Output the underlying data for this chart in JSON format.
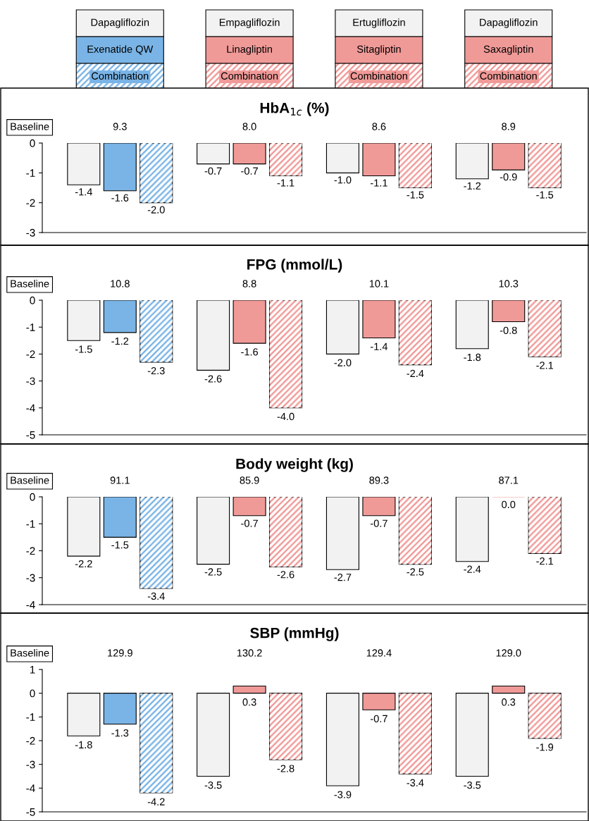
{
  "chart_data": [
    {
      "type": "other",
      "annotations": [
        "Dapagliflozin",
        "Exenatide QW",
        "Combination",
        "Empagliflozin",
        "Linagliptin",
        "Combination",
        "Ertugliflozin",
        "Sitagliptin",
        "Combination",
        "Dapagliflozin",
        "Saxagliptin",
        "Combination"
      ]
    },
    {
      "type": "bar",
      "title": "HbA$_{1c}$ (%)",
      "categories": [
        null,
        null,
        null,
        null
      ],
      "ylim": [
        -3,
        0
      ],
      "yticks": [
        0,
        -1,
        -2,
        -3
      ],
      "tick_labels": "y",
      "annotations": [
        "Baseline",
        "9.3",
        "8.0",
        "8.6",
        "8.9"
      ],
      "series": [
        {
          "colors": [
            "#f2f2f2",
            "#f2f2f2",
            "#f2f2f2",
            "#f2f2f2"
          ],
          "values": [
            -1.4,
            -0.7,
            -1.0,
            -1.2
          ],
          "value_labels": [
            "-1.4",
            "-0.7",
            "-1.0",
            "-1.2"
          ]
        },
        {
          "colors": [
            "#7ab4e6",
            "#f09a98",
            "#f09a98",
            "#f09a98"
          ],
          "values": [
            -1.6,
            -0.7,
            -1.1,
            -0.9
          ],
          "value_labels": [
            "-1.6",
            "-0.7",
            "-1.1",
            "-0.9"
          ]
        },
        {
          "colors": [
            "#7ab4e6",
            "#f09a98",
            "#f09a98",
            "#f09a98"
          ],
          "values": [
            -2.0,
            -1.1,
            -1.5,
            -1.5
          ],
          "value_labels": [
            "-2.0",
            "-1.1",
            "-1.5",
            "-1.5"
          ]
        }
      ]
    },
    {
      "type": "bar",
      "title": "FPG (mmol/L)",
      "categories": [
        null,
        null,
        null,
        null
      ],
      "ylim": [
        -5,
        0
      ],
      "yticks": [
        0,
        -1,
        -2,
        -3,
        -4,
        -5
      ],
      "tick_labels": "y",
      "annotations": [
        "Baseline",
        "10.8",
        "8.8",
        "10.1",
        "10.3"
      ],
      "series": [
        {
          "colors": [
            "#f2f2f2",
            "#f2f2f2",
            "#f2f2f2",
            "#f2f2f2"
          ],
          "values": [
            -1.5,
            -2.6,
            -2.0,
            -1.8
          ],
          "value_labels": [
            "-1.5",
            "-2.6",
            "-2.0",
            "-1.8"
          ]
        },
        {
          "colors": [
            "#7ab4e6",
            "#f09a98",
            "#f09a98",
            "#f09a98"
          ],
          "values": [
            -1.2,
            -1.6,
            -1.4,
            -0.8
          ],
          "value_labels": [
            "-1.2",
            "-1.6",
            "-1.4",
            "-0.8"
          ]
        },
        {
          "colors": [
            "#7ab4e6",
            "#f09a98",
            "#f09a98",
            "#f09a98"
          ],
          "values": [
            -2.3,
            -4.0,
            -2.4,
            -2.1
          ],
          "value_labels": [
            "-2.3",
            "-4.0",
            "-2.4",
            "-2.1"
          ]
        }
      ]
    },
    {
      "type": "bar",
      "title": "Body weight (kg)",
      "categories": [
        null,
        null,
        null,
        null
      ],
      "ylim": [
        -4,
        0
      ],
      "yticks": [
        0,
        -1,
        -2,
        -3,
        -4
      ],
      "tick_labels": "y",
      "annotations": [
        "Baseline",
        "91.1",
        "85.9",
        "89.3",
        "87.1"
      ],
      "series": [
        {
          "colors": [
            "#f2f2f2",
            "#f2f2f2",
            "#f2f2f2",
            "#f2f2f2"
          ],
          "values": [
            -2.2,
            -2.5,
            -2.7,
            -2.4
          ],
          "value_labels": [
            "-2.2",
            "-2.5",
            "-2.7",
            "-2.4"
          ]
        },
        {
          "colors": [
            "#7ab4e6",
            "#f09a98",
            "#f09a98",
            "#f09a98"
          ],
          "values": [
            -1.5,
            -0.7,
            -0.7,
            0.0
          ],
          "value_labels": [
            "-1.5",
            "-0.7",
            "-0.7",
            "0.0"
          ]
        },
        {
          "colors": [
            "#7ab4e6",
            "#f09a98",
            "#f09a98",
            "#f09a98"
          ],
          "values": [
            -3.4,
            -2.6,
            -2.5,
            -2.1
          ],
          "value_labels": [
            "-3.4",
            "-2.6",
            "-2.5",
            "-2.1"
          ]
        }
      ]
    },
    {
      "type": "bar",
      "title": "SBP (mmHg)",
      "categories": [
        null,
        null,
        null,
        null
      ],
      "ylim": [
        -5,
        1
      ],
      "yticks": [
        1,
        0,
        -1,
        -2,
        -3,
        -4,
        -5
      ],
      "tick_labels": "y",
      "annotations": [
        "Baseline",
        "129.9",
        "130.2",
        "129.4",
        "129.0"
      ],
      "series": [
        {
          "colors": [
            "#f2f2f2",
            "#f2f2f2",
            "#f2f2f2",
            "#f2f2f2"
          ],
          "values": [
            -1.8,
            -3.5,
            -3.9,
            -3.5
          ],
          "value_labels": [
            "-1.8",
            "-3.5",
            "-3.9",
            "-3.5"
          ]
        },
        {
          "colors": [
            "#7ab4e6",
            "#f09a98",
            "#f09a98",
            "#f09a98"
          ],
          "values": [
            -1.3,
            0.3,
            -0.7,
            0.3
          ],
          "value_labels": [
            "-1.3",
            "0.3",
            "-0.7",
            "0.3"
          ]
        },
        {
          "colors": [
            "#7ab4e6",
            "#f09a98",
            "#f09a98",
            "#f09a98"
          ],
          "values": [
            -4.2,
            -2.8,
            -3.4,
            -1.9
          ],
          "value_labels": [
            "-4.2",
            "-2.8",
            "-3.4",
            "-1.9"
          ]
        }
      ]
    }
  ]
}
